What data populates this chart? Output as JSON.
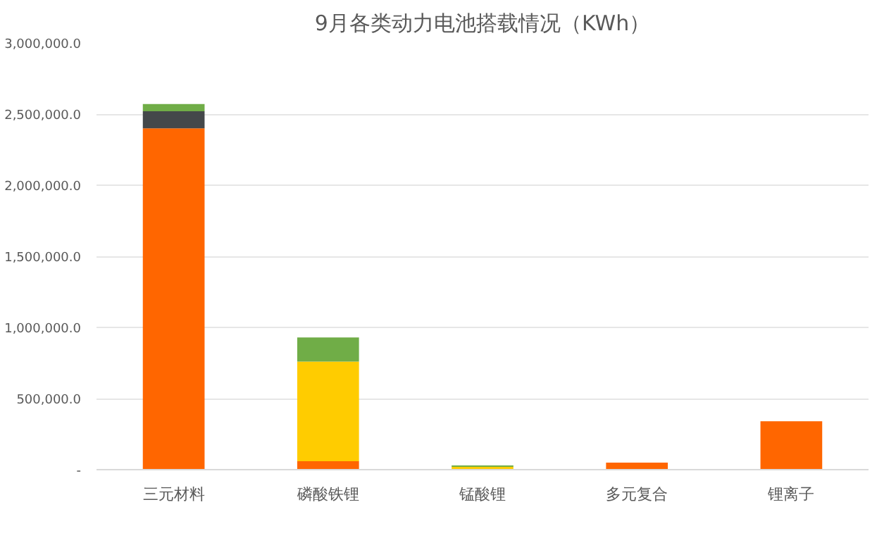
{
  "chart_data": {
    "type": "bar",
    "title": "9月各类动力电池搭载情况（KWh）",
    "stacked": true,
    "categories": [
      "三元材料",
      "磷酸铁锂",
      "锰酸锂",
      "多元复合",
      "锂离子"
    ],
    "series": [
      {
        "color": "#ff6600",
        "values": [
          2400000,
          60000,
          null,
          50000,
          340000
        ]
      },
      {
        "color": "#ffcc00",
        "values": [
          null,
          700000,
          20000,
          null,
          null
        ]
      },
      {
        "color": "#44484a",
        "values": [
          120000,
          null,
          null,
          null,
          null
        ]
      },
      {
        "color": "#70ad47",
        "values": [
          50000,
          170000,
          10000,
          null,
          null
        ]
      }
    ],
    "ylim": [
      0,
      3000000
    ],
    "yticks": [
      {
        "value": 0,
        "label": "-"
      },
      {
        "value": 500000,
        "label": "500,000.0"
      },
      {
        "value": 1000000,
        "label": "1,000,000.0"
      },
      {
        "value": 1500000,
        "label": "1,500,000.0"
      },
      {
        "value": 2000000,
        "label": "2,000,000.0"
      },
      {
        "value": 2500000,
        "label": "2,500,000.0"
      },
      {
        "value": 3000000,
        "label": "3,000,000.0"
      }
    ],
    "grid": "y"
  }
}
